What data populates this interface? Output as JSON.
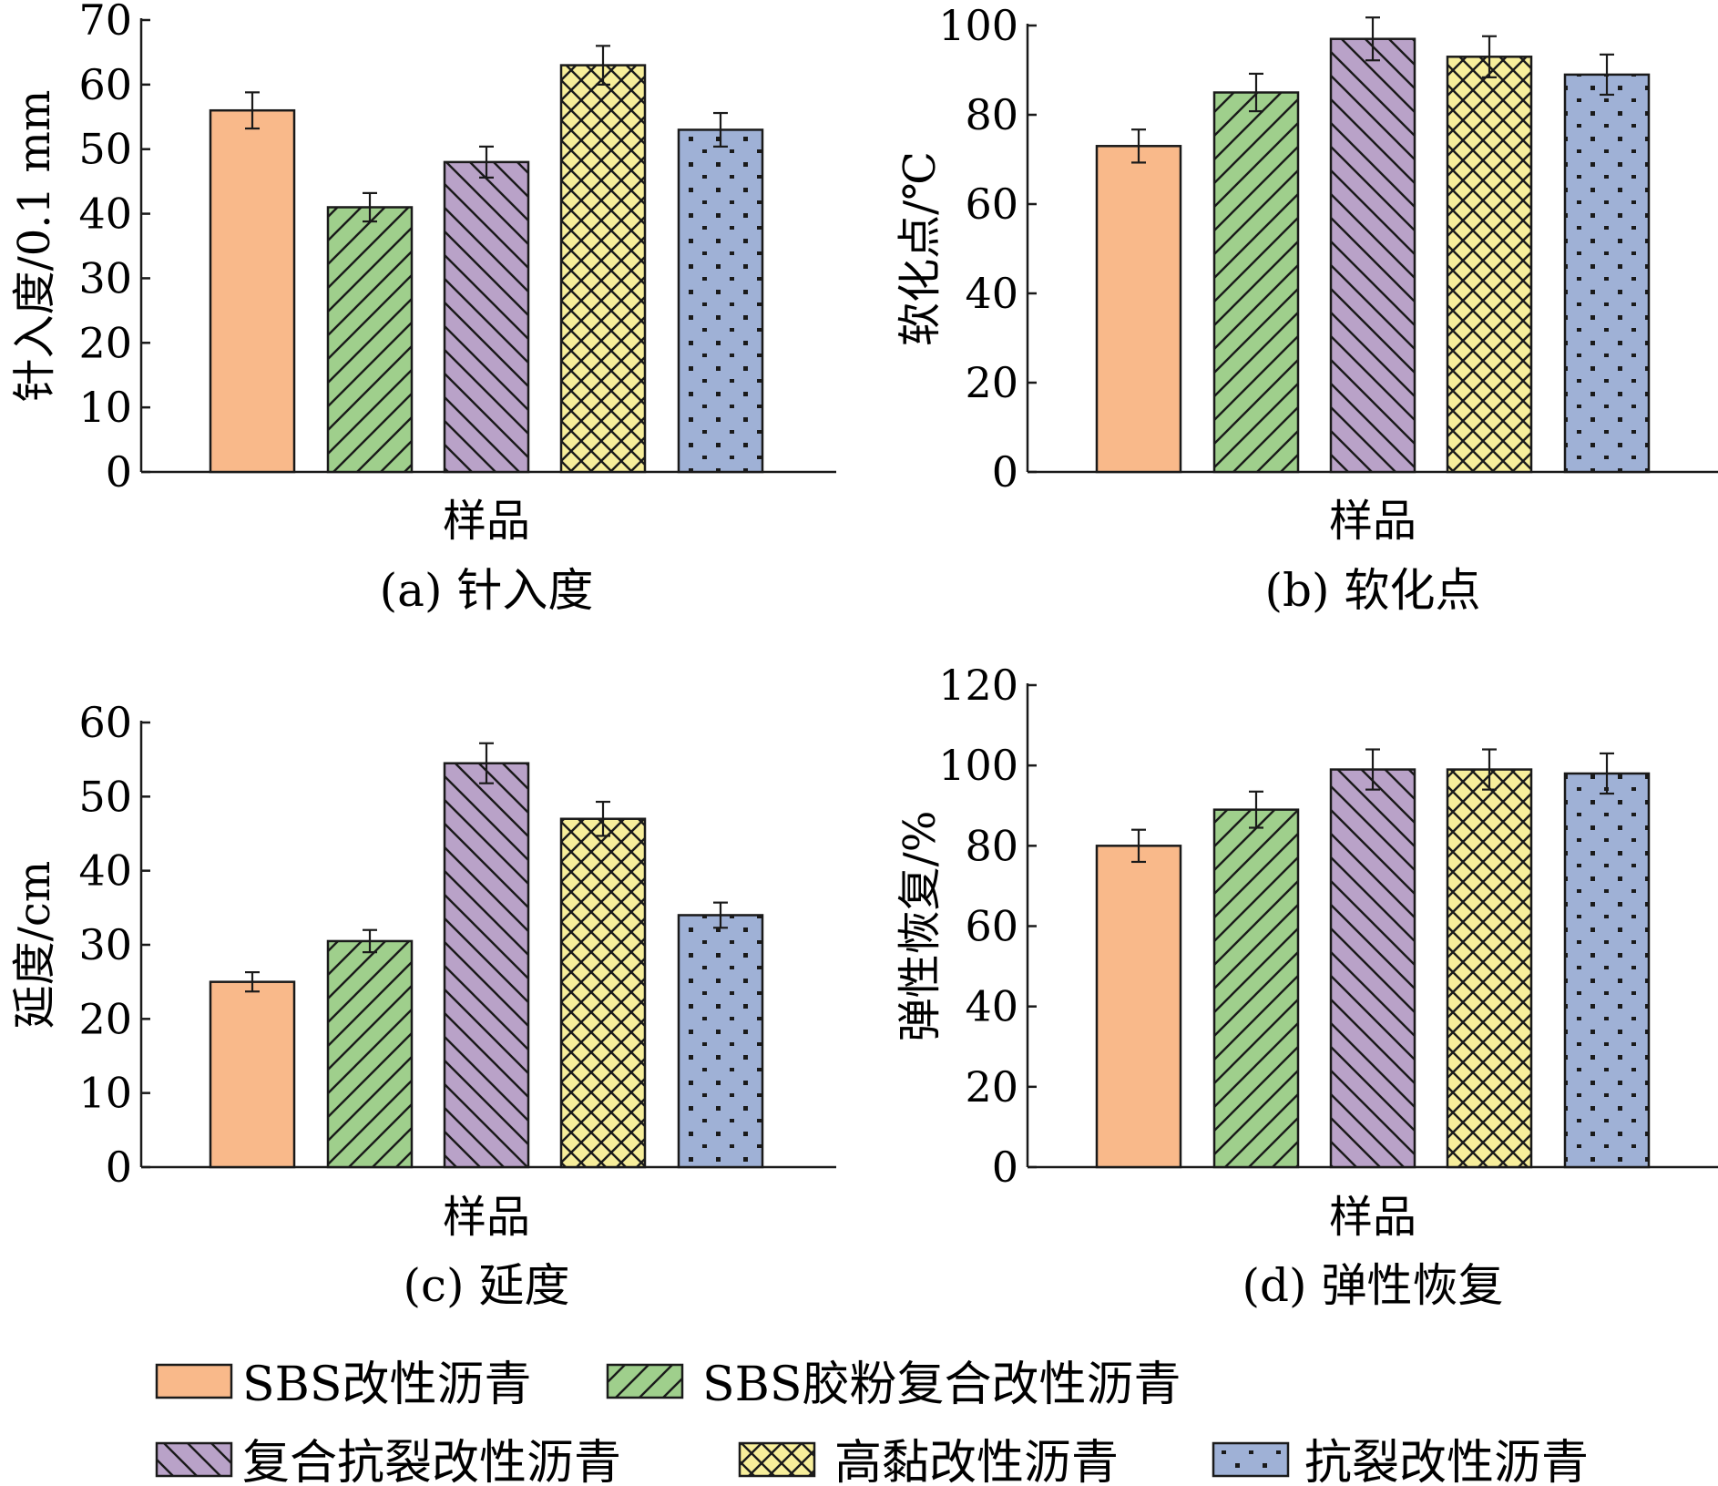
{
  "legend": [
    {
      "label": "SBS改性沥青",
      "pattern": "solid",
      "color": "#f9b98a"
    },
    {
      "label": "SBS胶粉复合改性沥青",
      "pattern": "diag-right",
      "color": "#9fcf8c"
    },
    {
      "label": "复合抗裂改性沥青",
      "pattern": "diag-left",
      "color": "#b9a2c8"
    },
    {
      "label": "高黏改性沥青",
      "pattern": "cross",
      "color": "#f7ee9b"
    },
    {
      "label": "抗裂改性沥青",
      "pattern": "dots",
      "color": "#9fb1d6"
    }
  ],
  "chart_data": [
    {
      "type": "bar",
      "caption": "(a) 针入度",
      "xlabel": "样品",
      "ylabel": "针入度/0.1 mm",
      "ylim": [
        0,
        70
      ],
      "yticks": [
        0,
        10,
        20,
        30,
        40,
        50,
        60,
        70
      ],
      "categories": [
        "SBS改性沥青",
        "SBS胶粉复合改性沥青",
        "复合抗裂改性沥青",
        "高黏改性沥青",
        "抗裂改性沥青"
      ],
      "values": [
        56,
        41,
        48,
        63,
        53
      ],
      "errors": [
        2.8,
        2.2,
        2.4,
        3.0,
        2.6
      ]
    },
    {
      "type": "bar",
      "caption": "(b) 软化点",
      "xlabel": "样品",
      "ylabel": "软化点/℃",
      "ylim": [
        0,
        100
      ],
      "yticks": [
        0,
        20,
        40,
        60,
        80,
        100
      ],
      "categories": [
        "SBS改性沥青",
        "SBS胶粉复合改性沥青",
        "复合抗裂改性沥青",
        "高黏改性沥青",
        "抗裂改性沥青"
      ],
      "values": [
        73,
        85,
        97,
        93,
        89
      ],
      "errors": [
        3.7,
        4.2,
        4.8,
        4.6,
        4.5
      ]
    },
    {
      "type": "bar",
      "caption": "(c) 延度",
      "xlabel": "样品",
      "ylabel": "延度/cm",
      "ylim": [
        0,
        60
      ],
      "yticks": [
        0,
        10,
        20,
        30,
        40,
        50,
        60
      ],
      "categories": [
        "SBS改性沥青",
        "SBS胶粉复合改性沥青",
        "复合抗裂改性沥青",
        "高黏改性沥青",
        "抗裂改性沥青"
      ],
      "values": [
        25,
        30.5,
        54.5,
        47,
        34
      ],
      "errors": [
        1.3,
        1.5,
        2.7,
        2.3,
        1.7
      ]
    },
    {
      "type": "bar",
      "caption": "(d) 弹性恢复",
      "xlabel": "样品",
      "ylabel": "弹性恢复/%",
      "ylim": [
        0,
        120
      ],
      "yticks": [
        0,
        20,
        40,
        60,
        80,
        100,
        120
      ],
      "categories": [
        "SBS改性沥青",
        "SBS胶粉复合改性沥青",
        "复合抗裂改性沥青",
        "高黏改性沥青",
        "抗裂改性沥青"
      ],
      "values": [
        80,
        89,
        99,
        99,
        98
      ],
      "errors": [
        4.0,
        4.5,
        5.0,
        5.0,
        5.0
      ]
    }
  ]
}
